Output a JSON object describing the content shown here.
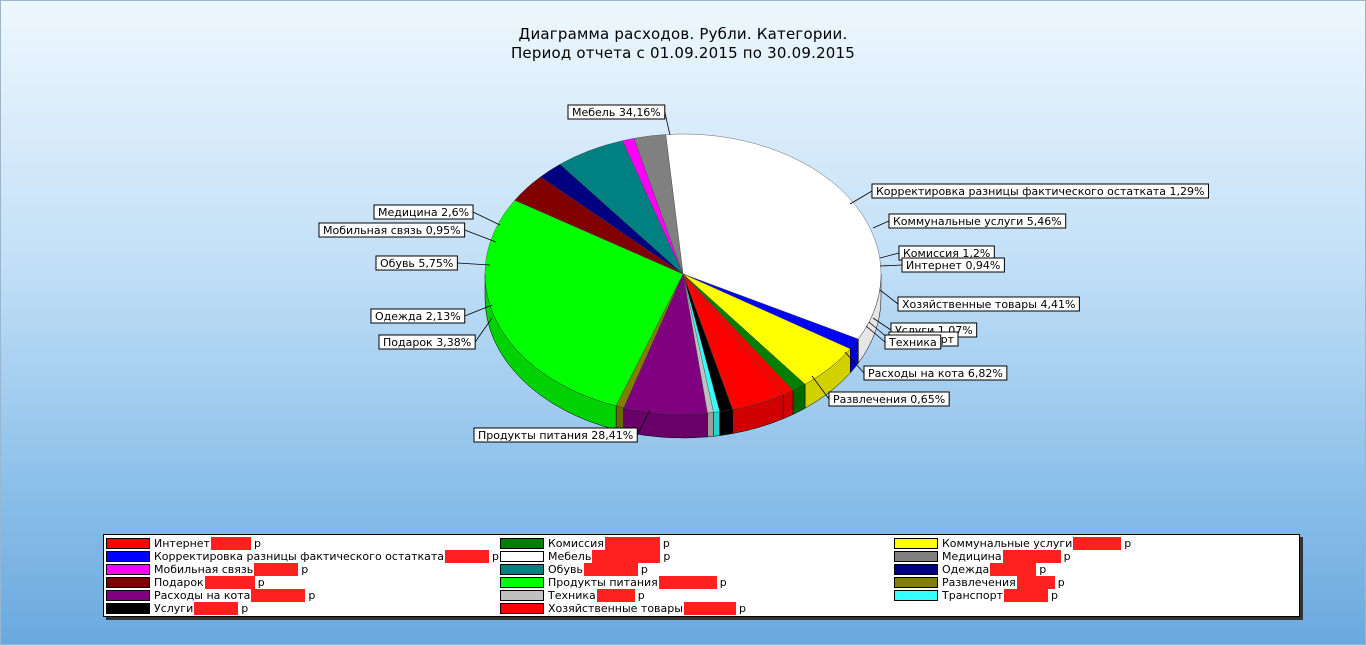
{
  "chart_data": {
    "type": "pie",
    "title": "Диаграмма расходов. Рубли. Категории.",
    "subtitle": "Период отчета с 01.09.2015 по 30.09.2015",
    "currency_suffix": "р",
    "slices": [
      {
        "name": "Мебель",
        "label": "Мебель 34,16%",
        "value": 34.16,
        "color": "#ffffff"
      },
      {
        "name": "Корректировка разницы фактического остатката",
        "label": "Корректировка разницы фактического остатката 1,29%",
        "value": 1.29,
        "color": "#0000ff"
      },
      {
        "name": "Коммунальные услуги",
        "label": "Коммунальные услуги 5,46%",
        "value": 5.46,
        "color": "#ffff00"
      },
      {
        "name": "Комиссия",
        "label": "Комиссия 1,2%",
        "value": 1.2,
        "color": "#007f00"
      },
      {
        "name": "Интернет",
        "label": "Интернет 0,94%",
        "value": 0.94,
        "color": "#ff0000"
      },
      {
        "name": "Хозяйственные товары",
        "label": "Хозяйственные товары 4,41%",
        "value": 4.41,
        "color": "#ff0000"
      },
      {
        "name": "Услуги",
        "label": "Услуги 1,07%",
        "value": 1.07,
        "color": "#000000"
      },
      {
        "name": "Транспорт",
        "label": "Транспорт",
        "value": 0.5,
        "color": "#33ffff"
      },
      {
        "name": "Техника",
        "label": "Техника",
        "value": 0.5,
        "color": "#c0c0c0"
      },
      {
        "name": "Расходы на кота",
        "label": "Расходы на кота 6,82%",
        "value": 6.82,
        "color": "#800080"
      },
      {
        "name": "Развлечения",
        "label": "Развлечения 0,65%",
        "value": 0.65,
        "color": "#808000"
      },
      {
        "name": "Продукты питания",
        "label": "Продукты питания 28,41%",
        "value": 28.41,
        "color": "#00ff00"
      },
      {
        "name": "Подарок",
        "label": "Подарок 3,38%",
        "value": 3.38,
        "color": "#800000"
      },
      {
        "name": "Одежда",
        "label": "Одежда 2,13%",
        "value": 2.13,
        "color": "#000080"
      },
      {
        "name": "Обувь",
        "label": "Обувь 5,75%",
        "value": 5.75,
        "color": "#008080"
      },
      {
        "name": "Мобильная связь",
        "label": "Мобильная связь 0,95%",
        "value": 0.95,
        "color": "#ff00ff"
      },
      {
        "name": "Медицина",
        "label": "Медицина 2,6%",
        "value": 2.6,
        "color": "#808080"
      }
    ],
    "legend": {
      "placement": "bottom",
      "entries": [
        {
          "name": "Интернет",
          "color": "#ff0000"
        },
        {
          "name": "Комиссия",
          "color": "#007f00"
        },
        {
          "name": "Коммунальные услуги",
          "color": "#ffff00"
        },
        {
          "name": "Корректировка разницы фактического остатката",
          "color": "#0000ff"
        },
        {
          "name": "Мебель",
          "color": "#ffffff"
        },
        {
          "name": "Медицина",
          "color": "#808080"
        },
        {
          "name": "Мобильная связь",
          "color": "#ff00ff"
        },
        {
          "name": "Обувь",
          "color": "#008080"
        },
        {
          "name": "Одежда",
          "color": "#000080"
        },
        {
          "name": "Подарок",
          "color": "#800000"
        },
        {
          "name": "Продукты питания",
          "color": "#00ff00"
        },
        {
          "name": "Развлечения",
          "color": "#808000"
        },
        {
          "name": "Расходы на кота",
          "color": "#800080"
        },
        {
          "name": "Техника",
          "color": "#c0c0c0"
        },
        {
          "name": "Транспорт",
          "color": "#33ffff"
        },
        {
          "name": "Услуги",
          "color": "#000000"
        },
        {
          "name": "Хозяйственные товары",
          "color": "#ff0000"
        }
      ]
    }
  }
}
